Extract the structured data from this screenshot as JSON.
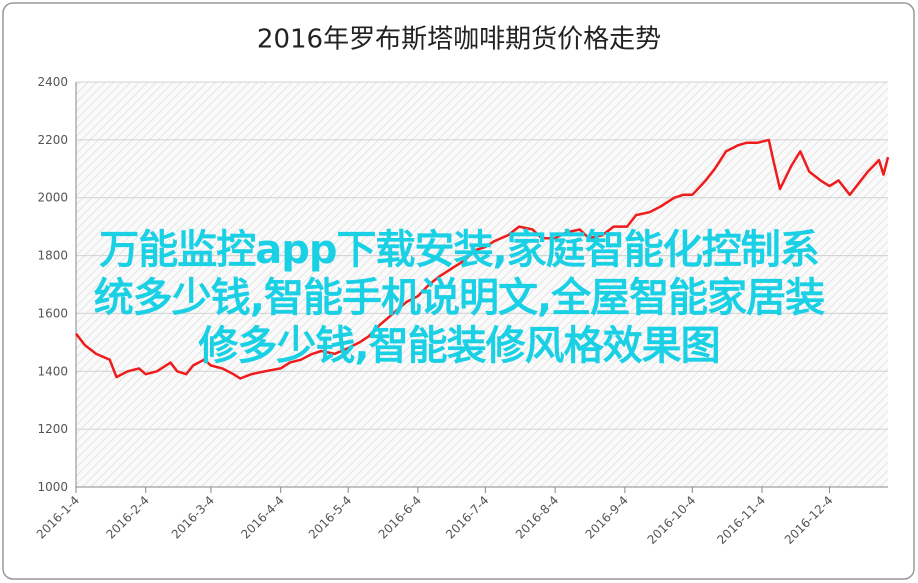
{
  "chart_data": {
    "type": "line",
    "title": "2016年罗布斯塔咖啡期货价格走势",
    "x": [
      "2016-1-4",
      "2016-1-8",
      "2016-1-13",
      "2016-1-19",
      "2016-1-22",
      "2016-1-27",
      "2016-2-1",
      "2016-2-4",
      "2016-2-9",
      "2016-2-15",
      "2016-2-18",
      "2016-2-22",
      "2016-2-25",
      "2016-3-1",
      "2016-3-4",
      "2016-3-9",
      "2016-3-14",
      "2016-3-17",
      "2016-3-22",
      "2016-3-28",
      "2016-4-4",
      "2016-4-8",
      "2016-4-13",
      "2016-4-18",
      "2016-4-22",
      "2016-4-28",
      "2016-5-4",
      "2016-5-9",
      "2016-5-13",
      "2016-5-18",
      "2016-5-24",
      "2016-5-30",
      "2016-6-4",
      "2016-6-9",
      "2016-6-14",
      "2016-6-20",
      "2016-6-24",
      "2016-6-30",
      "2016-7-4",
      "2016-7-8",
      "2016-7-14",
      "2016-7-19",
      "2016-7-25",
      "2016-7-29",
      "2016-8-4",
      "2016-8-9",
      "2016-8-15",
      "2016-8-19",
      "2016-8-25",
      "2016-8-30",
      "2016-9-5",
      "2016-9-9",
      "2016-9-15",
      "2016-9-20",
      "2016-9-26",
      "2016-9-30",
      "2016-10-4",
      "2016-10-10",
      "2016-10-14",
      "2016-10-19",
      "2016-10-24",
      "2016-10-28",
      "2016-11-2",
      "2016-11-7",
      "2016-11-9",
      "2016-11-12",
      "2016-11-17",
      "2016-11-21",
      "2016-11-25",
      "2016-11-30",
      "2016-12-4",
      "2016-12-8",
      "2016-12-13",
      "2016-12-16",
      "2016-12-21",
      "2016-12-26",
      "2016-12-28",
      "2016-12-30"
    ],
    "series": [
      {
        "color": "#ee1c1c",
        "values": [
          1530,
          1490,
          1460,
          1440,
          1380,
          1400,
          1410,
          1390,
          1400,
          1430,
          1400,
          1390,
          1420,
          1440,
          1420,
          1410,
          1390,
          1375,
          1390,
          1400,
          1410,
          1430,
          1440,
          1460,
          1470,
          1460,
          1480,
          1500,
          1520,
          1560,
          1600,
          1640,
          1660,
          1700,
          1730,
          1760,
          1780,
          1820,
          1830,
          1850,
          1870,
          1900,
          1890,
          1860,
          1860,
          1880,
          1890,
          1860,
          1870,
          1900,
          1900,
          1940,
          1950,
          1970,
          2000,
          2010,
          2010,
          2060,
          2100,
          2160,
          2180,
          2190,
          2190,
          2200,
          2130,
          2030,
          2110,
          2160,
          2090,
          2060,
          2040,
          2060,
          2010,
          2040,
          2090,
          2130,
          2080,
          2140
        ]
      }
    ],
    "xlim": [
      "2016-1-4",
      "2016-12-30"
    ],
    "xticks": [
      "2016-1-4",
      "2016-2-4",
      "2016-3-4",
      "2016-4-4",
      "2016-5-4",
      "2016-6-4",
      "2016-7-4",
      "2016-8-4",
      "2016-9-4",
      "2016-10-4",
      "2016-11-4",
      "2016-12-4"
    ],
    "ylim": [
      1000,
      2400
    ],
    "yticks": [
      1000,
      1200,
      1400,
      1600,
      1800,
      2000,
      2200,
      2400
    ],
    "grid": true,
    "annotations": [
      "万能监控app下载安装,家庭智能化控制系",
      "统多少钱,智能手机说明文,全屋智能家居装",
      "修多少钱,智能装修风格效果图"
    ]
  }
}
